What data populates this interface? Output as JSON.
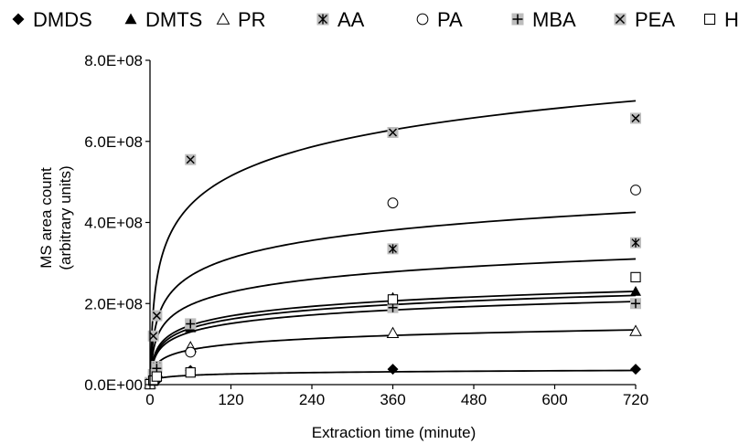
{
  "chart_data": {
    "type": "scatter",
    "title": "",
    "xlabel": "Extraction time (minute)",
    "ylabel": [
      "MS area count",
      "(arbitrary units)"
    ],
    "xlim": [
      0,
      720
    ],
    "ylim": [
      0,
      800000000
    ],
    "x_ticks": [
      "0",
      "120",
      "240",
      "360",
      "480",
      "600",
      "720"
    ],
    "y_ticks": [
      "0.0E+00",
      "2.0E+08",
      "4.0E+08",
      "6.0E+08",
      "8.0E+08"
    ],
    "grid": false,
    "legend_position": "top",
    "trendlines": "logarithmic",
    "series": [
      {
        "name": "DMDS",
        "marker": "diamond-filled",
        "x": [
          0,
          5,
          10,
          60,
          360,
          720
        ],
        "y": [
          2000000,
          5000000,
          10000000,
          35000000,
          38000000,
          38000000
        ],
        "curve": [
          3000000,
          35000000
        ]
      },
      {
        "name": "DMTS",
        "marker": "triangle-filled",
        "x": [
          0,
          5,
          10,
          60,
          360,
          720
        ],
        "y": [
          3000000,
          20000000,
          40000000,
          140000000,
          215000000,
          230000000
        ],
        "curve": [
          8000000,
          230000000
        ]
      },
      {
        "name": "PR",
        "marker": "triangle-open",
        "x": [
          0,
          5,
          10,
          60,
          360,
          720
        ],
        "y": [
          2000000,
          15000000,
          30000000,
          92000000,
          127000000,
          132000000
        ],
        "curve": [
          5000000,
          135000000
        ]
      },
      {
        "name": "AA",
        "marker": "asterisk-boxed",
        "x": [
          0,
          5,
          10,
          60,
          360,
          720
        ],
        "y": [
          5000000,
          25000000,
          45000000,
          150000000,
          335000000,
          350000000
        ],
        "curve": [
          10000000,
          310000000
        ]
      },
      {
        "name": "PA",
        "marker": "circle-open",
        "x": [
          0,
          5,
          10,
          60,
          360,
          720
        ],
        "y": [
          3000000,
          20000000,
          40000000,
          80000000,
          448000000,
          480000000
        ],
        "curve": [
          10000000,
          425000000
        ]
      },
      {
        "name": "MBA",
        "marker": "plus-boxed",
        "x": [
          0,
          5,
          10,
          60,
          360,
          720
        ],
        "y": [
          2000000,
          20000000,
          40000000,
          150000000,
          190000000,
          200000000
        ],
        "curve": [
          6000000,
          205000000
        ]
      },
      {
        "name": "PEA",
        "marker": "x-boxed",
        "x": [
          0,
          5,
          10,
          60,
          360,
          720
        ],
        "y": [
          5000000,
          120000000,
          170000000,
          555000000,
          622000000,
          657000000
        ],
        "curve": [
          20000000,
          700000000
        ]
      },
      {
        "name": "HA",
        "marker": "square-open",
        "x": [
          0,
          5,
          10,
          60,
          360,
          720
        ],
        "y": [
          1000000,
          10000000,
          20000000,
          30000000,
          210000000,
          265000000
        ],
        "curve": [
          5000000,
          220000000
        ]
      }
    ]
  }
}
